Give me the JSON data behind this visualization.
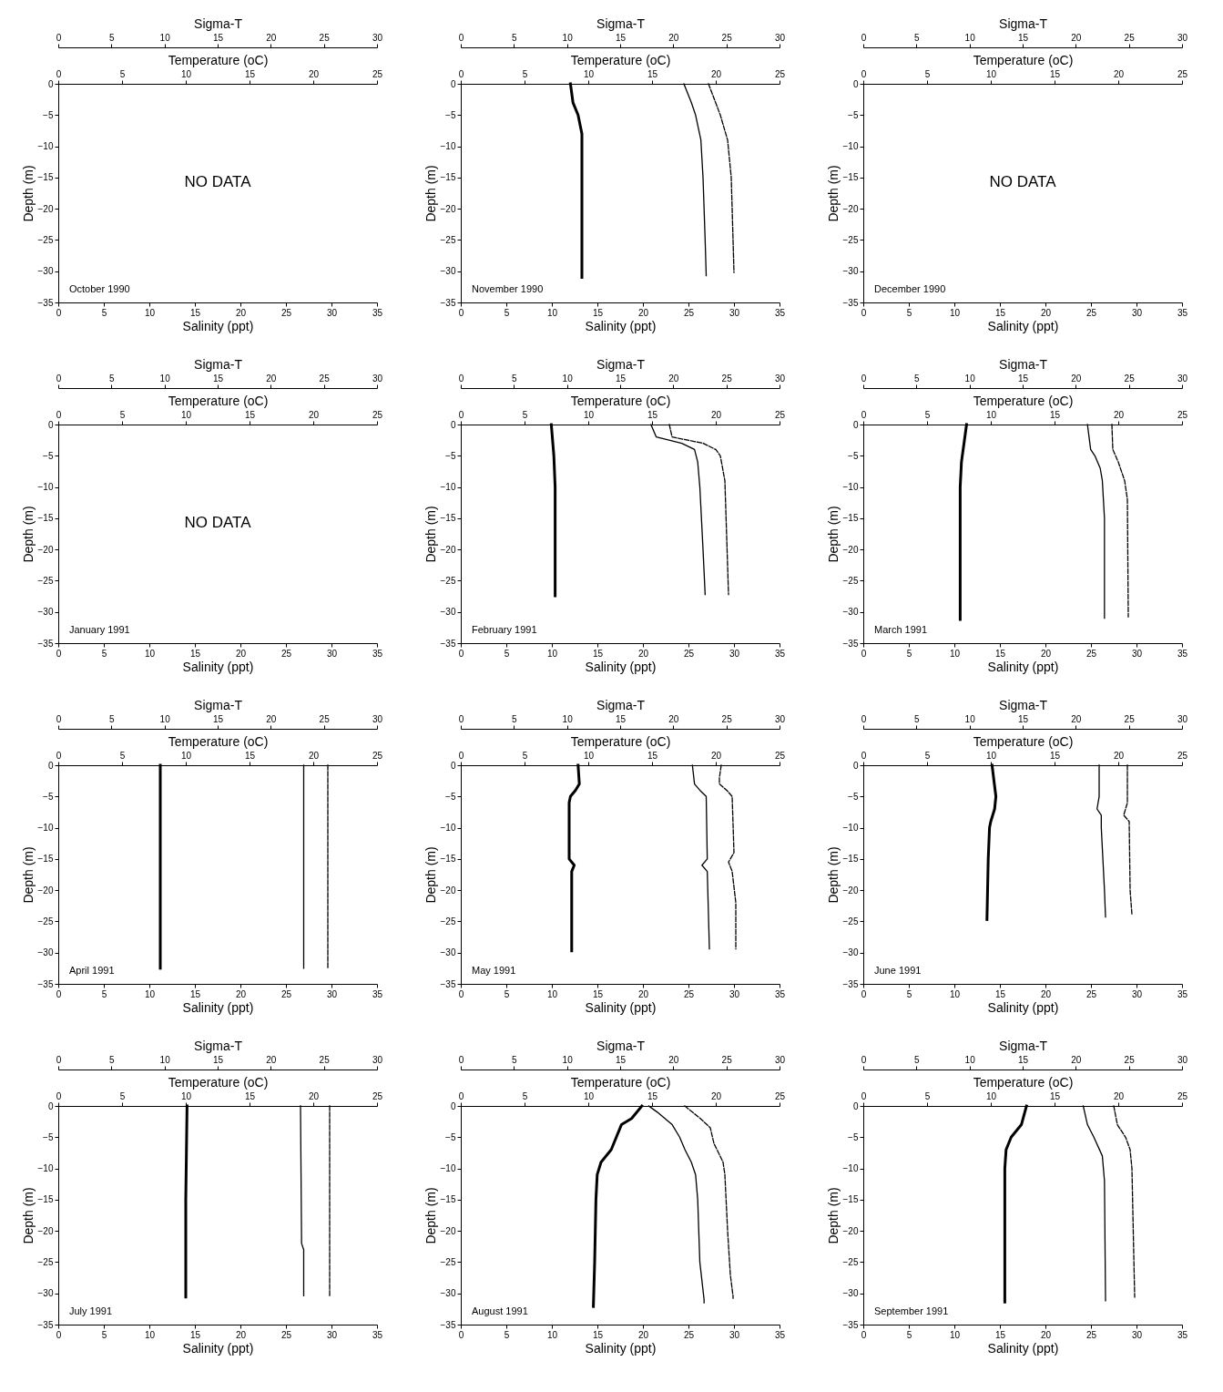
{
  "chart_data": [
    {
      "type": "line",
      "xlabel": "Salinity (ppt)",
      "x2label": "Temperature (oC)",
      "ylabel": "Depth (m)",
      "xlim": [
        0,
        35
      ],
      "xticks": [
        0,
        5,
        10,
        15,
        20,
        25,
        30,
        35
      ],
      "x2lim": [
        0,
        25
      ],
      "x2ticks": [
        0,
        5,
        10,
        15,
        20,
        25
      ],
      "ylim": [
        -35,
        0
      ],
      "yticks": [
        0,
        -5,
        -10,
        -15,
        -20,
        -25,
        -30,
        -35
      ],
      "annotations": [
        "October 1990",
        "NO DATA"
      ]
    },
    {
      "type": "line",
      "xlabel": "Sigma-T",
      "xlim": [
        0,
        30
      ],
      "xticks": [
        0,
        5,
        10,
        15,
        20,
        25,
        30
      ],
      "ylim": [
        -35,
        0
      ],
      "tick_labels": "x"
    },
    {
      "type": "line",
      "xlabel": "Salinity (ppt)",
      "x2label": "Temperature (oC)",
      "ylabel": "Depth (m)",
      "xlim": [
        0,
        35
      ],
      "xticks": [
        0,
        5,
        10,
        15,
        20,
        25,
        30,
        35
      ],
      "x2lim": [
        0,
        25
      ],
      "x2ticks": [
        0,
        5,
        10,
        15,
        20,
        25
      ],
      "ylim": [
        -35,
        0
      ],
      "yticks": [
        0,
        -5,
        -10,
        -15,
        -20,
        -25,
        -30,
        -35
      ],
      "annotations": [
        "November 1990"
      ],
      "series": [
        {
          "axis": "x2",
          "color": "#000000",
          "x": [
            8.6,
            8.8,
            9.2,
            9.5,
            9.5,
            9.5
          ],
          "values": [
            0,
            -3,
            -5,
            -8,
            -20,
            -31
          ]
        },
        {
          "color": "#000000",
          "line_style": "dashed",
          "x": [
            27.2,
            28.5,
            29.3,
            29.7,
            30.0
          ],
          "values": [
            0,
            -5,
            -9,
            -15,
            -30.2
          ]
        }
      ]
    },
    {
      "type": "line",
      "xlabel": "Sigma-T",
      "xlim": [
        0,
        30
      ],
      "xticks": [
        0,
        5,
        10,
        15,
        20,
        25,
        30
      ],
      "ylim": [
        -35,
        0
      ],
      "tick_labels": "x",
      "series": [
        {
          "color": "#000000",
          "x": [
            21.0,
            21.7,
            22.1,
            22.6,
            22.8,
            23.0,
            23.1
          ],
          "values": [
            0,
            -3,
            -5,
            -9,
            -15,
            -25,
            -30.7
          ]
        }
      ]
    },
    {
      "type": "line",
      "xlabel": "Salinity (ppt)",
      "x2label": "Temperature (oC)",
      "ylabel": "Depth (m)",
      "xlim": [
        0,
        35
      ],
      "xticks": [
        0,
        5,
        10,
        15,
        20,
        25,
        30,
        35
      ],
      "x2lim": [
        0,
        25
      ],
      "x2ticks": [
        0,
        5,
        10,
        15,
        20,
        25
      ],
      "ylim": [
        -35,
        0
      ],
      "yticks": [
        0,
        -5,
        -10,
        -15,
        -20,
        -25,
        -30,
        -35
      ],
      "annotations": [
        "December 1990",
        "NO DATA"
      ]
    },
    {
      "type": "line",
      "xlabel": "Sigma-T",
      "xlim": [
        0,
        30
      ],
      "xticks": [
        0,
        5,
        10,
        15,
        20,
        25,
        30
      ],
      "ylim": [
        -35,
        0
      ],
      "tick_labels": "x"
    },
    {
      "type": "line",
      "xlabel": "Salinity (ppt)",
      "x2label": "Temperature (oC)",
      "ylabel": "Depth (m)",
      "xlim": [
        0,
        35
      ],
      "xticks": [
        0,
        5,
        10,
        15,
        20,
        25,
        30,
        35
      ],
      "x2lim": [
        0,
        25
      ],
      "x2ticks": [
        0,
        5,
        10,
        15,
        20,
        25
      ],
      "ylim": [
        -35,
        0
      ],
      "yticks": [
        0,
        -5,
        -10,
        -15,
        -20,
        -25,
        -30,
        -35
      ],
      "annotations": [
        "January 1991",
        "NO DATA"
      ]
    },
    {
      "type": "line",
      "xlabel": "Sigma-T",
      "xlim": [
        0,
        30
      ],
      "xticks": [
        0,
        5,
        10,
        15,
        20,
        25,
        30
      ],
      "ylim": [
        -35,
        0
      ],
      "tick_labels": "x"
    },
    {
      "type": "line",
      "xlabel": "Salinity (ppt)",
      "x2label": "Temperature (oC)",
      "ylabel": "Depth (m)",
      "xlim": [
        0,
        35
      ],
      "xticks": [
        0,
        5,
        10,
        15,
        20,
        25,
        30,
        35
      ],
      "x2lim": [
        0,
        25
      ],
      "x2ticks": [
        0,
        5,
        10,
        15,
        20,
        25
      ],
      "ylim": [
        -35,
        0
      ],
      "yticks": [
        0,
        -5,
        -10,
        -15,
        -20,
        -25,
        -30,
        -35
      ],
      "annotations": [
        "February 1991"
      ],
      "series": [
        {
          "axis": "x2",
          "color": "#000000",
          "x": [
            7.1,
            7.3,
            7.4,
            7.4
          ],
          "values": [
            0,
            -5,
            -10,
            -27.4
          ]
        },
        {
          "color": "#000000",
          "line_style": "dashed",
          "x": [
            22.9,
            23.2,
            26.6,
            28.0,
            28.5,
            29.0,
            29.4
          ],
          "values": [
            0,
            -2,
            -3,
            -4,
            -5,
            -9,
            -27.2
          ]
        }
      ]
    },
    {
      "type": "line",
      "xlabel": "Sigma-T",
      "xlim": [
        0,
        30
      ],
      "xticks": [
        0,
        5,
        10,
        15,
        20,
        25,
        30
      ],
      "ylim": [
        -35,
        0
      ],
      "tick_labels": "x",
      "series": [
        {
          "color": "#000000",
          "x": [
            17.9,
            18.4,
            20.8,
            22.0,
            22.3,
            22.5,
            22.8,
            23.0
          ],
          "values": [
            0,
            -2,
            -3,
            -4,
            -6,
            -10,
            -20,
            -27.2
          ]
        }
      ]
    },
    {
      "type": "line",
      "xlabel": "Salinity (ppt)",
      "x2label": "Temperature (oC)",
      "ylabel": "Depth (m)",
      "xlim": [
        0,
        35
      ],
      "xticks": [
        0,
        5,
        10,
        15,
        20,
        25,
        30,
        35
      ],
      "x2lim": [
        0,
        25
      ],
      "x2ticks": [
        0,
        5,
        10,
        15,
        20,
        25
      ],
      "ylim": [
        -35,
        0
      ],
      "yticks": [
        0,
        -5,
        -10,
        -15,
        -20,
        -25,
        -30,
        -35
      ],
      "annotations": [
        "March 1991"
      ],
      "series": [
        {
          "axis": "x2",
          "color": "#000000",
          "x": [
            8.1,
            7.9,
            7.7,
            7.6,
            7.6
          ],
          "values": [
            0,
            -3,
            -6,
            -10,
            -31.2
          ]
        },
        {
          "color": "#000000",
          "line_style": "dashed",
          "x": [
            27.3,
            27.4,
            28.0,
            28.7,
            29.0,
            29.1
          ],
          "values": [
            0,
            -4,
            -6,
            -9,
            -12,
            -30.8
          ]
        }
      ]
    },
    {
      "type": "line",
      "xlabel": "Sigma-T",
      "xlim": [
        0,
        30
      ],
      "xticks": [
        0,
        5,
        10,
        15,
        20,
        25,
        30
      ],
      "ylim": [
        -35,
        0
      ],
      "tick_labels": "x",
      "series": [
        {
          "color": "#000000",
          "x": [
            21.1,
            21.4,
            21.8,
            22.3,
            22.5,
            22.7,
            22.7
          ],
          "values": [
            0,
            -4,
            -5,
            -7,
            -9,
            -15,
            -31
          ]
        }
      ]
    },
    {
      "type": "line",
      "xlabel": "Salinity (ppt)",
      "x2label": "Temperature (oC)",
      "ylabel": "Depth (m)",
      "xlim": [
        0,
        35
      ],
      "xticks": [
        0,
        5,
        10,
        15,
        20,
        25,
        30,
        35
      ],
      "x2lim": [
        0,
        25
      ],
      "x2ticks": [
        0,
        5,
        10,
        15,
        20,
        25
      ],
      "ylim": [
        -35,
        0
      ],
      "yticks": [
        0,
        -5,
        -10,
        -15,
        -20,
        -25,
        -30,
        -35
      ],
      "annotations": [
        "April 1991"
      ],
      "series": [
        {
          "axis": "x2",
          "color": "#000000",
          "x": [
            8.0,
            8.0
          ],
          "values": [
            0,
            -32.5
          ]
        },
        {
          "color": "#000000",
          "line_style": "dashed",
          "x": [
            29.6,
            29.6
          ],
          "values": [
            0,
            -32.4
          ]
        }
      ]
    },
    {
      "type": "line",
      "xlabel": "Sigma-T",
      "xlim": [
        0,
        30
      ],
      "xticks": [
        0,
        5,
        10,
        15,
        20,
        25,
        30
      ],
      "ylim": [
        -35,
        0
      ],
      "tick_labels": "x",
      "series": [
        {
          "color": "#000000",
          "x": [
            23.1,
            23.1
          ],
          "values": [
            0,
            -32.5
          ]
        }
      ]
    },
    {
      "type": "line",
      "xlabel": "Salinity (ppt)",
      "x2label": "Temperature (oC)",
      "ylabel": "Depth (m)",
      "xlim": [
        0,
        35
      ],
      "xticks": [
        0,
        5,
        10,
        15,
        20,
        25,
        30,
        35
      ],
      "x2lim": [
        0,
        25
      ],
      "x2ticks": [
        0,
        5,
        10,
        15,
        20,
        25
      ],
      "ylim": [
        -35,
        0
      ],
      "yticks": [
        0,
        -5,
        -10,
        -15,
        -20,
        -25,
        -30,
        -35
      ],
      "annotations": [
        "May 1991"
      ],
      "series": [
        {
          "axis": "x2",
          "color": "#000000",
          "x": [
            9.2,
            9.3,
            9.0,
            8.6,
            8.5,
            8.5,
            8.9,
            8.7,
            8.7
          ],
          "values": [
            0,
            -3,
            -4,
            -5,
            -6,
            -15,
            -16,
            -17,
            -29.7
          ]
        },
        {
          "color": "#000000",
          "line_style": "dashed",
          "x": [
            28.6,
            28.4,
            28.4,
            29.2,
            29.8,
            30.0,
            29.4,
            29.8,
            30.2,
            30.2
          ],
          "values": [
            0,
            -2,
            -3,
            -4,
            -5,
            -14,
            -15.5,
            -17,
            -22,
            -29.4
          ]
        }
      ]
    },
    {
      "type": "line",
      "xlabel": "Sigma-T",
      "xlim": [
        0,
        30
      ],
      "xticks": [
        0,
        5,
        10,
        15,
        20,
        25,
        30
      ],
      "ylim": [
        -35,
        0
      ],
      "tick_labels": "x",
      "series": [
        {
          "color": "#000000",
          "x": [
            21.8,
            22.0,
            22.5,
            23.1,
            23.2,
            22.7,
            23.2,
            23.4
          ],
          "values": [
            0,
            -3,
            -4,
            -5,
            -15,
            -16,
            -17,
            -29.4
          ]
        }
      ]
    },
    {
      "type": "line",
      "xlabel": "Salinity (ppt)",
      "x2label": "Temperature (oC)",
      "ylabel": "Depth (m)",
      "xlim": [
        0,
        35
      ],
      "xticks": [
        0,
        5,
        10,
        15,
        20,
        25,
        30,
        35
      ],
      "x2lim": [
        0,
        25
      ],
      "x2ticks": [
        0,
        5,
        10,
        15,
        20,
        25
      ],
      "ylim": [
        -35,
        0
      ],
      "yticks": [
        0,
        -5,
        -10,
        -15,
        -20,
        -25,
        -30,
        -35
      ],
      "annotations": [
        "June 1991"
      ],
      "series": [
        {
          "axis": "x2",
          "color": "#000000",
          "x": [
            10.1,
            10.4,
            10.3,
            10.0,
            9.9,
            9.8,
            9.7
          ],
          "values": [
            0,
            -5,
            -7,
            -9,
            -10,
            -15,
            -24.7
          ]
        },
        {
          "color": "#000000",
          "line_style": "dashed",
          "x": [
            29.0,
            29.0,
            28.6,
            29.2,
            29.3,
            29.5
          ],
          "values": [
            0,
            -6,
            -8,
            -9,
            -20,
            -23.9
          ]
        }
      ]
    },
    {
      "type": "line",
      "xlabel": "Sigma-T",
      "xlim": [
        0,
        30
      ],
      "xticks": [
        0,
        5,
        10,
        15,
        20,
        25,
        30
      ],
      "ylim": [
        -35,
        0
      ],
      "tick_labels": "x",
      "series": [
        {
          "color": "#000000",
          "x": [
            22.2,
            22.2,
            22.0,
            22.4,
            22.4,
            22.7,
            22.8
          ],
          "values": [
            0,
            -5,
            -7,
            -8,
            -10,
            -20,
            -24.3
          ]
        }
      ]
    },
    {
      "type": "line",
      "xlabel": "Salinity (ppt)",
      "x2label": "Temperature (oC)",
      "ylabel": "Depth (m)",
      "xlim": [
        0,
        35
      ],
      "xticks": [
        0,
        5,
        10,
        15,
        20,
        25,
        30,
        35
      ],
      "x2lim": [
        0,
        25
      ],
      "x2ticks": [
        0,
        5,
        10,
        15,
        20,
        25
      ],
      "ylim": [
        -35,
        0
      ],
      "yticks": [
        0,
        -5,
        -10,
        -15,
        -20,
        -25,
        -30,
        -35
      ],
      "annotations": [
        "July 1991"
      ],
      "series": [
        {
          "axis": "x2",
          "color": "#000000",
          "x": [
            10.1,
            10.0,
            10.0
          ],
          "values": [
            0,
            -15,
            -30.6
          ]
        },
        {
          "color": "#000000",
          "line_style": "dashed",
          "x": [
            29.8,
            29.8
          ],
          "values": [
            0,
            -30.4
          ]
        }
      ]
    },
    {
      "type": "line",
      "xlabel": "Sigma-T",
      "xlim": [
        0,
        30
      ],
      "xticks": [
        0,
        5,
        10,
        15,
        20,
        25,
        30
      ],
      "ylim": [
        -35,
        0
      ],
      "tick_labels": "x",
      "series": [
        {
          "color": "#000000",
          "x": [
            22.8,
            22.9,
            23.1,
            23.1
          ],
          "values": [
            0,
            -22,
            -23,
            -30.4
          ]
        }
      ]
    },
    {
      "type": "line",
      "xlabel": "Salinity (ppt)",
      "x2label": "Temperature (oC)",
      "ylabel": "Depth (m)",
      "xlim": [
        0,
        35
      ],
      "xticks": [
        0,
        5,
        10,
        15,
        20,
        25,
        30,
        35
      ],
      "x2lim": [
        0,
        25
      ],
      "x2ticks": [
        0,
        5,
        10,
        15,
        20,
        25
      ],
      "ylim": [
        -35,
        0
      ],
      "yticks": [
        0,
        -5,
        -10,
        -15,
        -20,
        -25,
        -30,
        -35
      ],
      "annotations": [
        "August 1991"
      ],
      "series": [
        {
          "axis": "x2",
          "color": "#000000",
          "x": [
            14.2,
            13.4,
            12.6,
            12.2,
            11.8,
            11.0,
            10.7,
            10.6,
            10.5,
            10.4
          ],
          "values": [
            0,
            -2,
            -3,
            -5,
            -7,
            -9,
            -11,
            -15,
            -25,
            -32.1
          ]
        },
        {
          "color": "#000000",
          "line_style": "dashed",
          "x": [
            24.6,
            26.3,
            27.4,
            27.8,
            28.8,
            29.0,
            29.3,
            29.6,
            29.9,
            29.9
          ],
          "values": [
            0,
            -2,
            -3.5,
            -6,
            -9,
            -11,
            -20,
            -27,
            -30.5,
            -30.8
          ]
        }
      ]
    },
    {
      "type": "line",
      "xlabel": "Sigma-T",
      "xlim": [
        0,
        30
      ],
      "xticks": [
        0,
        5,
        10,
        15,
        20,
        25,
        30
      ],
      "ylim": [
        -35,
        0
      ],
      "tick_labels": "x",
      "series": [
        {
          "color": "#000000",
          "x": [
            17.7,
            18.5,
            19.9,
            20.6,
            21.1,
            21.7,
            22.1,
            22.3,
            22.5,
            22.9,
            22.9
          ],
          "values": [
            0,
            -1,
            -3,
            -5,
            -7,
            -9,
            -11,
            -15,
            -25,
            -31,
            -31.5
          ]
        }
      ]
    },
    {
      "type": "line",
      "xlabel": "Salinity (ppt)",
      "x2label": "Temperature (oC)",
      "ylabel": "Depth (m)",
      "xlim": [
        0,
        35
      ],
      "xticks": [
        0,
        5,
        10,
        15,
        20,
        25,
        30,
        35
      ],
      "x2lim": [
        0,
        25
      ],
      "x2ticks": [
        0,
        5,
        10,
        15,
        20,
        25
      ],
      "ylim": [
        -35,
        0
      ],
      "yticks": [
        0,
        -5,
        -10,
        -15,
        -20,
        -25,
        -30,
        -35
      ],
      "annotations": [
        "September 1991"
      ],
      "series": [
        {
          "axis": "x2",
          "color": "#000000",
          "x": [
            12.8,
            12.4,
            11.6,
            11.2,
            11.1,
            11.1
          ],
          "values": [
            0,
            -3,
            -5,
            -7,
            -10,
            -31.4
          ]
        },
        {
          "color": "#000000",
          "line_style": "dashed",
          "x": [
            27.5,
            27.9,
            28.8,
            29.3,
            29.5,
            29.8
          ],
          "values": [
            0,
            -3,
            -5,
            -7,
            -10,
            -30.6
          ]
        }
      ]
    },
    {
      "type": "line",
      "xlabel": "Sigma-T",
      "xlim": [
        0,
        30
      ],
      "xticks": [
        0,
        5,
        10,
        15,
        20,
        25,
        30
      ],
      "ylim": [
        -35,
        0
      ],
      "tick_labels": "x",
      "series": [
        {
          "color": "#000000",
          "x": [
            20.7,
            21.1,
            21.7,
            22.5,
            22.7,
            22.8
          ],
          "values": [
            0,
            -3,
            -5,
            -8,
            -12,
            -31.2
          ]
        }
      ]
    }
  ]
}
